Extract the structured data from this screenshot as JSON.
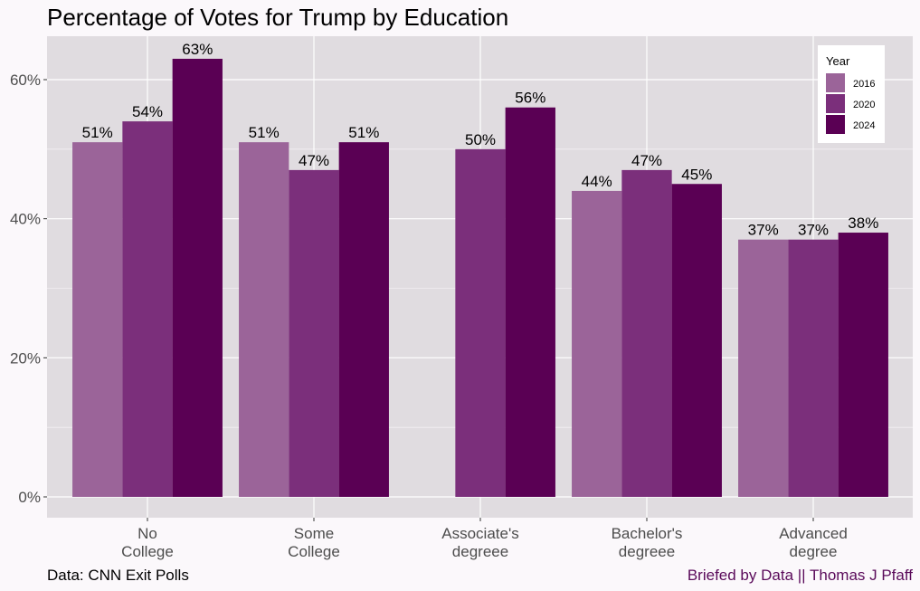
{
  "chart_data": {
    "type": "bar",
    "title": "Percentage of Votes for Trump by Education",
    "xlabel": "",
    "ylabel": "",
    "categories": [
      [
        "No",
        "College"
      ],
      [
        "Some",
        "College"
      ],
      [
        "Associate's",
        "degreee"
      ],
      [
        "Bachelor's",
        "degreee"
      ],
      [
        "Advanced",
        "degree"
      ]
    ],
    "series": [
      {
        "name": "2016",
        "color": "#9b6499",
        "values": [
          51,
          51,
          null,
          44,
          37
        ],
        "labels": [
          "51%",
          "51%",
          "",
          "44%",
          "37%"
        ]
      },
      {
        "name": "2020",
        "color": "#7b2f7b",
        "values": [
          54,
          47,
          50,
          47,
          37
        ],
        "labels": [
          "54%",
          "47%",
          "50%",
          "47%",
          "37%"
        ]
      },
      {
        "name": "2024",
        "color": "#5a0054",
        "values": [
          63,
          51,
          56,
          45,
          38
        ],
        "labels": [
          "63%",
          "51%",
          "56%",
          "45%",
          "38%"
        ]
      }
    ],
    "ylim": [
      0,
      66
    ],
    "yticks": [
      0,
      20,
      40,
      60
    ],
    "ytick_labels": [
      "0%",
      "20%",
      "40%",
      "60%"
    ],
    "legend": {
      "title": "Year",
      "position": "top-right"
    },
    "grid": true,
    "panel_color": "#e0dce0"
  },
  "captions": {
    "source": "Data: CNN Exit Polls",
    "credit": "Briefed by Data || Thomas J Pfaff"
  }
}
